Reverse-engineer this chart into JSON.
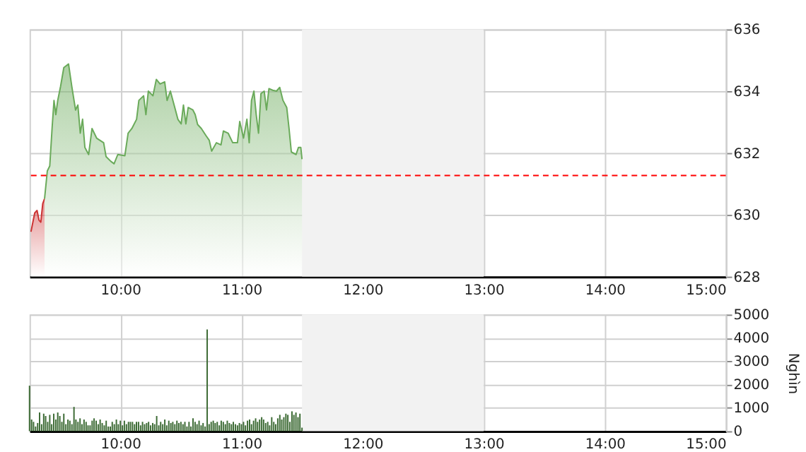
{
  "chart_data": [
    {
      "type": "area",
      "legend": false,
      "grid": true,
      "xlim": [
        9.25,
        15
      ],
      "xticks": [
        {
          "value": 10,
          "label": "10:00"
        },
        {
          "value": 11,
          "label": "11:00"
        },
        {
          "value": 12,
          "label": "12:00"
        },
        {
          "value": 13,
          "label": "13:00"
        },
        {
          "value": 14,
          "label": "14:00"
        },
        {
          "value": 15,
          "label": "15:00"
        }
      ],
      "ylim": [
        628,
        636
      ],
      "yticks": [
        628,
        630,
        632,
        634,
        636
      ],
      "series": [
        {
          "color": "#cc3333",
          "x": [
            9.262,
            9.281,
            9.293,
            9.312,
            9.328,
            9.343,
            9.359,
            9.374
          ],
          "values": [
            629.45,
            629.83,
            630.06,
            630.14,
            629.83,
            629.76,
            630.36,
            630.52
          ]
        },
        {
          "color": "#6aaa5a",
          "x": [
            9.374,
            9.397,
            9.417,
            9.436,
            9.452,
            9.467,
            9.483,
            9.506,
            9.533,
            9.572,
            9.599,
            9.63,
            9.649,
            9.669,
            9.688,
            9.707,
            9.738,
            9.766,
            9.804,
            9.862,
            9.882,
            9.921,
            9.948,
            9.979,
            10.037,
            10.064,
            10.095,
            10.134,
            10.153,
            10.192,
            10.211,
            10.231,
            10.269,
            10.297,
            10.328,
            10.366,
            10.386,
            10.413,
            10.444,
            10.475,
            10.502,
            10.521,
            10.541,
            10.56,
            10.599,
            10.618,
            10.638,
            10.669,
            10.707,
            10.734,
            10.754,
            10.793,
            10.831,
            10.851,
            10.89,
            10.928,
            10.967,
            10.986,
            11.017,
            11.045,
            11.064,
            11.083,
            11.103,
            11.122,
            11.141,
            11.161,
            11.188,
            11.207,
            11.227,
            11.258,
            11.289,
            11.316,
            11.343,
            11.374,
            11.393,
            11.412,
            11.451,
            11.471,
            11.49,
            11.5
          ],
          "values": [
            630.52,
            631.42,
            631.58,
            632.79,
            633.7,
            633.24,
            633.7,
            634.15,
            634.76,
            634.88,
            634.15,
            633.39,
            633.55,
            632.64,
            633.09,
            632.18,
            631.95,
            632.79,
            632.48,
            632.33,
            631.88,
            631.73,
            631.65,
            631.95,
            631.91,
            632.64,
            632.79,
            633.09,
            633.7,
            633.85,
            633.24,
            634.0,
            633.85,
            634.38,
            634.23,
            634.3,
            633.7,
            634.0,
            633.55,
            633.09,
            632.94,
            633.55,
            632.94,
            633.47,
            633.39,
            633.24,
            632.92,
            632.79,
            632.56,
            632.41,
            632.06,
            632.33,
            632.26,
            632.71,
            632.64,
            632.33,
            632.33,
            633.02,
            632.48,
            633.09,
            632.33,
            633.7,
            634.0,
            633.24,
            632.64,
            633.92,
            634.0,
            633.39,
            634.08,
            634.03,
            634.0,
            634.12,
            633.7,
            633.47,
            632.79,
            632.03,
            631.95,
            632.18,
            632.18,
            631.8
          ]
        }
      ],
      "ref_lines": [
        {
          "axis": "y",
          "value": 631.27,
          "color": "#ff0000",
          "line_style": "dashed"
        }
      ],
      "bands": [
        {
          "axis": "x",
          "from": 11.5,
          "to": 13,
          "color": "#f2f2f2"
        }
      ]
    },
    {
      "type": "bar",
      "legend": false,
      "grid": true,
      "ylabel": "Nghìn",
      "xlim": [
        9.25,
        15
      ],
      "xticks": [
        {
          "value": 10,
          "label": "10:00"
        },
        {
          "value": 11,
          "label": "11:00"
        },
        {
          "value": 12,
          "label": "12:00"
        },
        {
          "value": 13,
          "label": "13:00"
        },
        {
          "value": 14,
          "label": "14:00"
        },
        {
          "value": 15,
          "label": "15:00"
        }
      ],
      "ylim": [
        0,
        5000
      ],
      "yticks": [
        0,
        1000,
        2000,
        3000,
        4000,
        5000
      ],
      "x": [
        9.25,
        9.267,
        9.283,
        9.3,
        9.317,
        9.333,
        9.35,
        9.367,
        9.383,
        9.4,
        9.417,
        9.433,
        9.45,
        9.467,
        9.483,
        9.5,
        9.517,
        9.533,
        9.55,
        9.567,
        9.583,
        9.6,
        9.617,
        9.633,
        9.65,
        9.667,
        9.683,
        9.7,
        9.717,
        9.733,
        9.75,
        9.767,
        9.783,
        9.8,
        9.817,
        9.833,
        9.85,
        9.867,
        9.883,
        9.9,
        9.917,
        9.933,
        9.95,
        9.967,
        9.983,
        10,
        10.017,
        10.033,
        10.05,
        10.067,
        10.083,
        10.1,
        10.117,
        10.133,
        10.15,
        10.167,
        10.183,
        10.2,
        10.217,
        10.233,
        10.25,
        10.267,
        10.283,
        10.3,
        10.317,
        10.333,
        10.35,
        10.367,
        10.383,
        10.4,
        10.417,
        10.433,
        10.45,
        10.467,
        10.483,
        10.5,
        10.517,
        10.533,
        10.55,
        10.567,
        10.583,
        10.6,
        10.617,
        10.633,
        10.65,
        10.667,
        10.683,
        10.7,
        10.717,
        10.733,
        10.75,
        10.767,
        10.783,
        10.8,
        10.817,
        10.833,
        10.85,
        10.867,
        10.883,
        10.9,
        10.917,
        10.933,
        10.95,
        10.967,
        10.983,
        11,
        11.017,
        11.033,
        11.05,
        11.067,
        11.083,
        11.1,
        11.117,
        11.133,
        11.15,
        11.167,
        11.183,
        11.2,
        11.217,
        11.233,
        11.25,
        11.267,
        11.283,
        11.3,
        11.317,
        11.333,
        11.35,
        11.367,
        11.383,
        11.4,
        11.417,
        11.433,
        11.45,
        11.467,
        11.483,
        11.5
      ],
      "series": [
        {
          "color": "#3d6b35",
          "values": [
            1950,
            500,
            400,
            200,
            350,
            800,
            300,
            750,
            650,
            400,
            700,
            300,
            750,
            500,
            800,
            650,
            400,
            750,
            300,
            500,
            450,
            300,
            1040,
            500,
            400,
            550,
            300,
            500,
            400,
            250,
            250,
            450,
            550,
            450,
            300,
            500,
            350,
            250,
            450,
            200,
            200,
            400,
            300,
            500,
            300,
            450,
            250,
            450,
            300,
            400,
            400,
            400,
            300,
            400,
            400,
            250,
            400,
            300,
            350,
            400,
            250,
            350,
            300,
            650,
            250,
            400,
            300,
            500,
            250,
            450,
            350,
            400,
            300,
            450,
            350,
            400,
            300,
            400,
            200,
            400,
            200,
            550,
            400,
            300,
            450,
            250,
            350,
            200,
            4360,
            300,
            400,
            450,
            350,
            400,
            250,
            450,
            400,
            300,
            450,
            350,
            300,
            400,
            300,
            250,
            350,
            300,
            400,
            250,
            450,
            500,
            300,
            450,
            550,
            400,
            500,
            600,
            500,
            350,
            400,
            250,
            600,
            400,
            300,
            550,
            700,
            500,
            600,
            750,
            700,
            400,
            850,
            700,
            800,
            600,
            750,
            150
          ]
        }
      ],
      "bands": [
        {
          "axis": "x",
          "from": 11.5,
          "to": 13,
          "color": "#f2f2f2"
        }
      ]
    }
  ]
}
